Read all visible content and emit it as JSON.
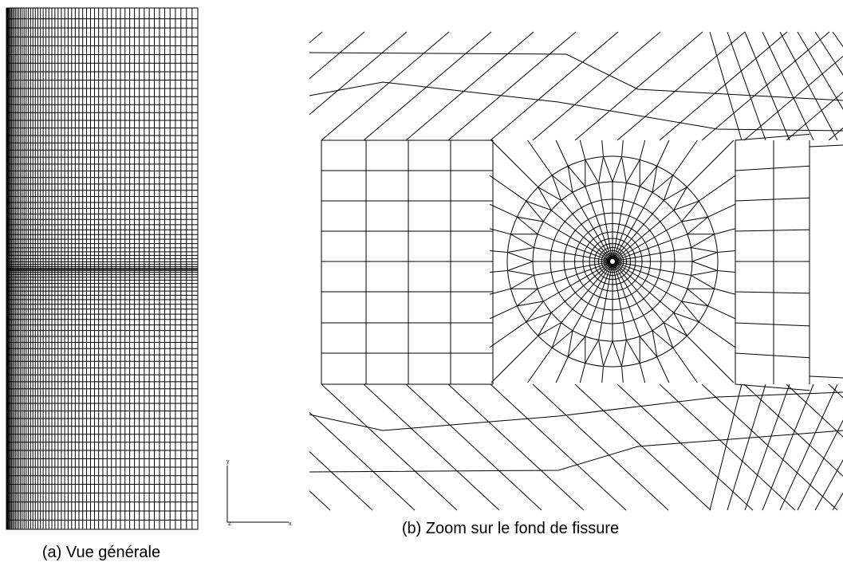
{
  "figure": {
    "panel_a": {
      "caption": "(a) Vue générale",
      "axes": {
        "y": "y",
        "x": "x",
        "z": "z"
      }
    },
    "panel_b": {
      "caption": "(b) Zoom sur le fond de fissure"
    }
  }
}
